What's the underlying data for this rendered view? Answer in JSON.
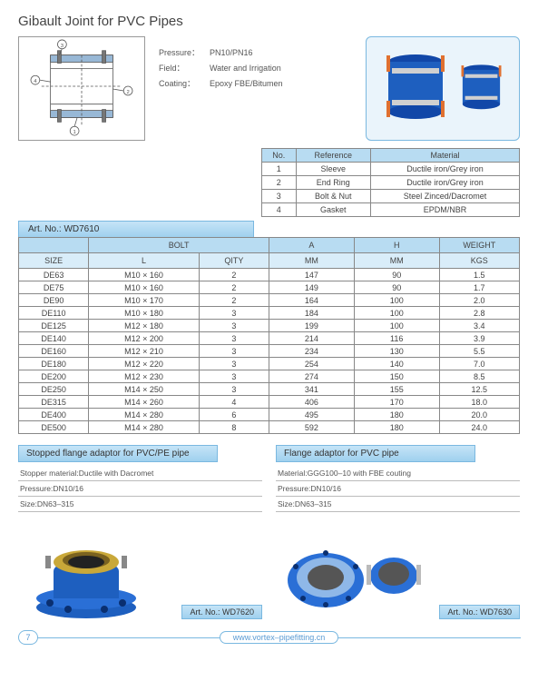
{
  "title": "Gibault Joint for PVC Pipes",
  "specs": [
    {
      "label": "Pressure：",
      "value": "PN10/PN16"
    },
    {
      "label": "Field：",
      "value": "Water and Irrigation"
    },
    {
      "label": "Coating：",
      "value": "Epoxy FBE/Bitumen"
    }
  ],
  "ref_table": {
    "headers": [
      "No.",
      "Reference",
      "Material"
    ],
    "rows": [
      [
        "1",
        "Sleeve",
        "Ductile iron/Grey iron"
      ],
      [
        "2",
        "End Ring",
        "Ductile iron/Grey iron"
      ],
      [
        "3",
        "Bolt & Nut",
        "Steel Zinced/Dacromet"
      ],
      [
        "4",
        "Gasket",
        "EPDM/NBR"
      ]
    ]
  },
  "art_no_main": "Art. No.: WD7610",
  "main_table": {
    "top_headers": [
      {
        "label": "",
        "span": 1
      },
      {
        "label": "BOLT",
        "span": 2
      },
      {
        "label": "A",
        "span": 1
      },
      {
        "label": "H",
        "span": 1
      },
      {
        "label": "WEIGHT",
        "span": 1
      }
    ],
    "sub_headers": [
      "SIZE",
      "L",
      "QITY",
      "MM",
      "MM",
      "KGS"
    ],
    "col_widths": [
      "14%",
      "22%",
      "14%",
      "17%",
      "17%",
      "16%"
    ],
    "rows": [
      [
        "DE63",
        "M10 × 160",
        "2",
        "147",
        "90",
        "1.5"
      ],
      [
        "DE75",
        "M10 × 160",
        "2",
        "149",
        "90",
        "1.7"
      ],
      [
        "DE90",
        "M10 × 170",
        "2",
        "164",
        "100",
        "2.0"
      ],
      [
        "DE110",
        "M10 × 180",
        "3",
        "184",
        "100",
        "2.8"
      ],
      [
        "DE125",
        "M12 × 180",
        "3",
        "199",
        "100",
        "3.4"
      ],
      [
        "DE140",
        "M12 × 200",
        "3",
        "214",
        "116",
        "3.9"
      ],
      [
        "DE160",
        "M12 × 210",
        "3",
        "234",
        "130",
        "5.5"
      ],
      [
        "DE180",
        "M12 × 220",
        "3",
        "254",
        "140",
        "7.0"
      ],
      [
        "DE200",
        "M12 × 230",
        "3",
        "274",
        "150",
        "8.5"
      ],
      [
        "DE250",
        "M14 × 250",
        "3",
        "341",
        "155",
        "12.5"
      ],
      [
        "DE315",
        "M14 × 260",
        "4",
        "406",
        "170",
        "18.0"
      ],
      [
        "DE400",
        "M14 × 280",
        "6",
        "495",
        "180",
        "20.0"
      ],
      [
        "DE500",
        "M14 × 280",
        "8",
        "592",
        "180",
        "24.0"
      ]
    ]
  },
  "products": [
    {
      "title": "Stopped flange adaptor for PVC/PE pipe",
      "lines": [
        "Stopper material:Ductile with Dacromet",
        "Pressure:DN10/16",
        "Size:DN63–315"
      ],
      "art": "Art. No.: WD7620",
      "colors": {
        "body": "#1e5fbf",
        "ring": "#c9a839"
      }
    },
    {
      "title": "Flange adaptor for PVC pipe",
      "lines": [
        "Material:GGG100–10 with FBE couting",
        "Pressure:DN10/16",
        "Size:DN63–315"
      ],
      "art": "Art. No.: WD7630",
      "colors": {
        "body": "#2a6fd6",
        "ring": "#8fb8e8"
      }
    }
  ],
  "page_number": "7",
  "url": "www.vortex–pipefitting.cn",
  "colors": {
    "header_bg": "#b8dcf2",
    "sub_header_bg": "#d9edf9",
    "border": "#888888",
    "accent_border": "#7ab8e0",
    "product_blue": "#1e5fbf"
  }
}
